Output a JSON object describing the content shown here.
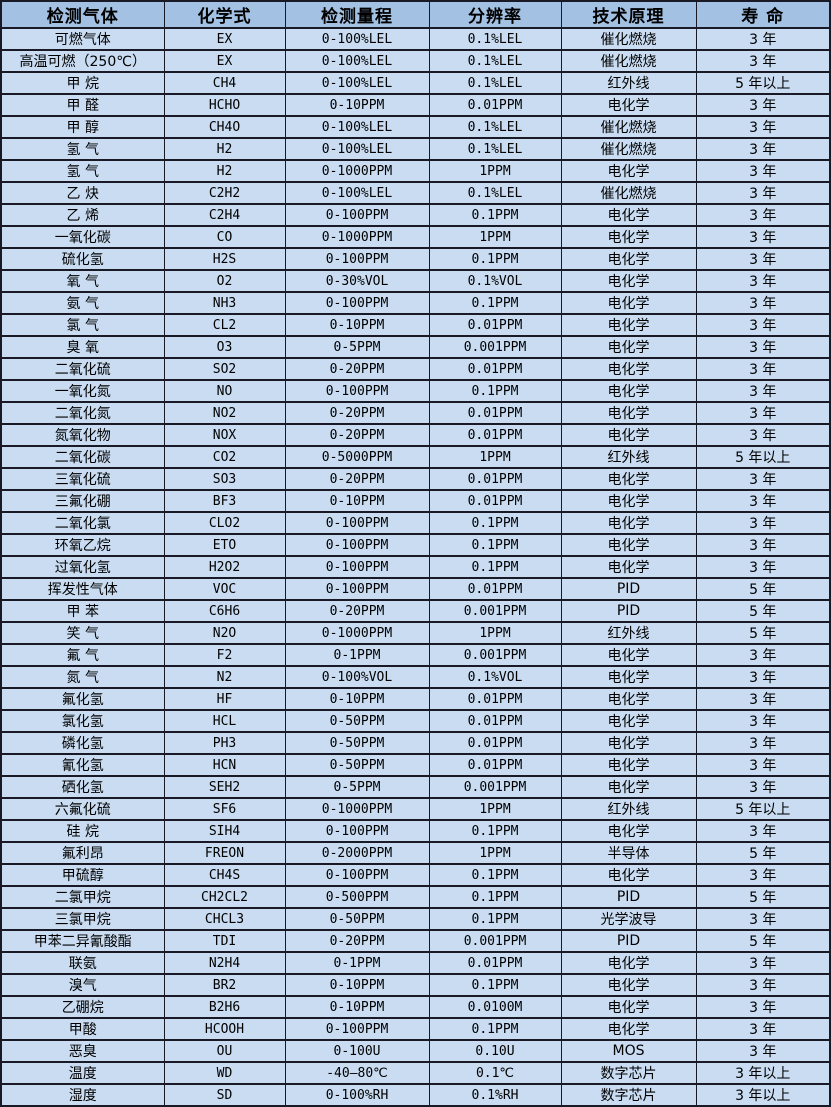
{
  "colors": {
    "header_bg": "#a2c1e3",
    "row_bg": "#c9dcf2",
    "border": "#1a1a26",
    "text": "#000000"
  },
  "chart_data": {
    "type": "table",
    "columns": [
      "检测气体",
      "化学式",
      "检测量程",
      "分辨率",
      "技术原理",
      "寿 命"
    ],
    "rows": [
      [
        "可燃气体",
        "EX",
        "0-100%LEL",
        "0.1%LEL",
        "催化燃烧",
        "3 年"
      ],
      [
        "高温可燃（250℃）",
        "EX",
        "0-100%LEL",
        "0.1%LEL",
        "催化燃烧",
        "3 年"
      ],
      [
        "甲 烷",
        "CH4",
        "0-100%LEL",
        "0.1%LEL",
        "红外线",
        "5 年以上"
      ],
      [
        "甲 醛",
        "HCHO",
        "0-10PPM",
        "0.01PPM",
        "电化学",
        "3 年"
      ],
      [
        "甲 醇",
        "CH4O",
        "0-100%LEL",
        "0.1%LEL",
        "催化燃烧",
        "3 年"
      ],
      [
        "氢 气",
        "H2",
        "0-100%LEL",
        "0.1%LEL",
        "催化燃烧",
        "3 年"
      ],
      [
        "氢 气",
        "H2",
        "0-1000PPM",
        "1PPM",
        "电化学",
        "3 年"
      ],
      [
        "乙 炔",
        "C2H2",
        "0-100%LEL",
        "0.1%LEL",
        "催化燃烧",
        "3 年"
      ],
      [
        "乙 烯",
        "C2H4",
        "0-100PPM",
        "0.1PPM",
        "电化学",
        "3 年"
      ],
      [
        "一氧化碳",
        "CO",
        "0-1000PPM",
        "1PPM",
        "电化学",
        "3 年"
      ],
      [
        "硫化氢",
        "H2S",
        "0-100PPM",
        "0.1PPM",
        "电化学",
        "3 年"
      ],
      [
        "氧 气",
        "O2",
        "0-30%VOL",
        "0.1%VOL",
        "电化学",
        "3 年"
      ],
      [
        "氨 气",
        "NH3",
        "0-100PPM",
        "0.1PPM",
        "电化学",
        "3 年"
      ],
      [
        "氯 气",
        "CL2",
        "0-10PPM",
        "0.01PPM",
        "电化学",
        "3 年"
      ],
      [
        "臭 氧",
        "O3",
        "0-5PPM",
        "0.001PPM",
        "电化学",
        "3 年"
      ],
      [
        "二氧化硫",
        "SO2",
        "0-20PPM",
        "0.01PPM",
        "电化学",
        "3 年"
      ],
      [
        "一氧化氮",
        "NO",
        "0-100PPM",
        "0.1PPM",
        "电化学",
        "3 年"
      ],
      [
        "二氧化氮",
        "NO2",
        "0-20PPM",
        "0.01PPM",
        "电化学",
        "3 年"
      ],
      [
        "氮氧化物",
        "NOX",
        "0-20PPM",
        "0.01PPM",
        "电化学",
        "3 年"
      ],
      [
        "二氧化碳",
        "CO2",
        "0-5000PPM",
        "1PPM",
        "红外线",
        "5 年以上"
      ],
      [
        "三氧化硫",
        "SO3",
        "0-20PPM",
        "0.01PPM",
        "电化学",
        "3 年"
      ],
      [
        "三氟化硼",
        "BF3",
        "0-10PPM",
        "0.01PPM",
        "电化学",
        "3 年"
      ],
      [
        "二氧化氯",
        "CLO2",
        "0-100PPM",
        "0.1PPM",
        "电化学",
        "3 年"
      ],
      [
        "环氧乙烷",
        "ETO",
        "0-100PPM",
        "0.1PPM",
        "电化学",
        "3 年"
      ],
      [
        "过氧化氢",
        "H2O2",
        "0-100PPM",
        "0.1PPM",
        "电化学",
        "3 年"
      ],
      [
        "挥发性气体",
        "VOC",
        "0-100PPM",
        "0.01PPM",
        "PID",
        "5 年"
      ],
      [
        "甲 苯",
        "C6H6",
        "0-20PPM",
        "0.001PPM",
        "PID",
        "5 年"
      ],
      [
        "笑 气",
        "N2O",
        "0-1000PPM",
        "1PPM",
        "红外线",
        "5 年"
      ],
      [
        "氟 气",
        "F2",
        "0-1PPM",
        "0.001PPM",
        "电化学",
        "3 年"
      ],
      [
        "氮 气",
        "N2",
        "0-100%VOL",
        "0.1%VOL",
        "电化学",
        "3 年"
      ],
      [
        "氟化氢",
        "HF",
        "0-10PPM",
        "0.01PPM",
        "电化学",
        "3 年"
      ],
      [
        "氯化氢",
        "HCL",
        "0-50PPM",
        "0.01PPM",
        "电化学",
        "3 年"
      ],
      [
        "磷化氢",
        "PH3",
        "0-50PPM",
        "0.01PPM",
        "电化学",
        "3 年"
      ],
      [
        "氰化氢",
        "HCN",
        "0-50PPM",
        "0.01PPM",
        "电化学",
        "3 年"
      ],
      [
        "硒化氢",
        "SEH2",
        "0-5PPM",
        "0.001PPM",
        "电化学",
        "3 年"
      ],
      [
        "六氟化硫",
        "SF6",
        "0-1000PPM",
        "1PPM",
        "红外线",
        "5 年以上"
      ],
      [
        "硅 烷",
        "SIH4",
        "0-100PPM",
        "0.1PPM",
        "电化学",
        "3 年"
      ],
      [
        "氟利昂",
        "FREON",
        "0-2000PPM",
        "1PPM",
        "半导体",
        "5 年"
      ],
      [
        "甲硫醇",
        "CH4S",
        "0-100PPM",
        "0.1PPM",
        "电化学",
        "3 年"
      ],
      [
        "二氯甲烷",
        "CH2CL2",
        "0-500PPM",
        "0.1PPM",
        "PID",
        "5 年"
      ],
      [
        "三氯甲烷",
        "CHCL3",
        "0-50PPM",
        "0.1PPM",
        "光学波导",
        "3 年"
      ],
      [
        "甲苯二异氰酸酯",
        "TDI",
        "0-20PPM",
        "0.001PPM",
        "PID",
        "5 年"
      ],
      [
        "联氨",
        "N2H4",
        "0-1PPM",
        "0.01PPM",
        "电化学",
        "3 年"
      ],
      [
        "溴气",
        "BR2",
        "0-10PPM",
        "0.1PPM",
        "电化学",
        "3 年"
      ],
      [
        "乙硼烷",
        "B2H6",
        "0-10PPM",
        "0.0100M",
        "电化学",
        "3 年"
      ],
      [
        "甲酸",
        "HCOOH",
        "0-100PPM",
        "0.1PPM",
        "电化学",
        "3 年"
      ],
      [
        "恶臭",
        "OU",
        "0-100U",
        "0.10U",
        "MOS",
        "3 年"
      ],
      [
        "温度",
        "WD",
        "-40—80℃",
        "0.1℃",
        "数字芯片",
        "3 年以上"
      ],
      [
        "湿度",
        "SD",
        "0-100%RH",
        "0.1%RH",
        "数字芯片",
        "3 年以上"
      ]
    ]
  }
}
